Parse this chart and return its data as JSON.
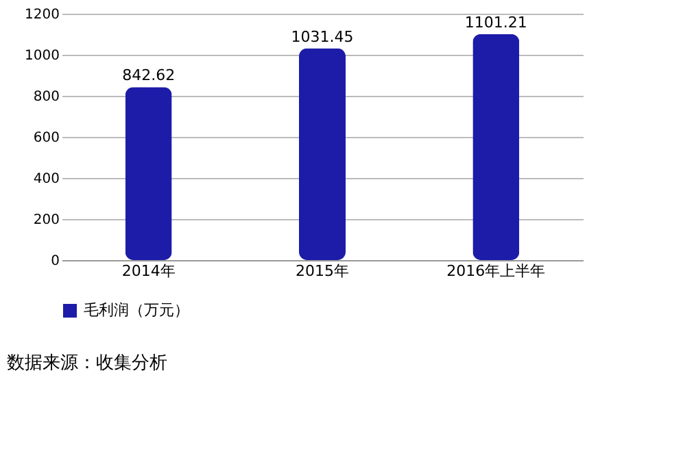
{
  "chart_data": {
    "type": "bar",
    "categories": [
      "2014年",
      "2015年",
      "2016年上半年"
    ],
    "series": [
      {
        "name": "毛利润（万元）",
        "color": "#1c1ca8",
        "values": [
          842.62,
          1031.45,
          1101.21
        ]
      }
    ],
    "ylim": [
      0,
      1200
    ],
    "yticks": [
      0,
      200,
      400,
      600,
      800,
      1000,
      1200
    ],
    "grid": "y",
    "legend": "bottom",
    "data_labels": true,
    "annotations": [
      "数据来源：收集分析"
    ]
  }
}
